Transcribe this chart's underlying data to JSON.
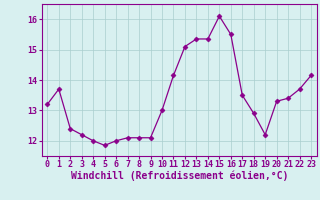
{
  "x": [
    0,
    1,
    2,
    3,
    4,
    5,
    6,
    7,
    8,
    9,
    10,
    11,
    12,
    13,
    14,
    15,
    16,
    17,
    18,
    19,
    20,
    21,
    22,
    23
  ],
  "y": [
    13.2,
    13.7,
    12.4,
    12.2,
    12.0,
    11.85,
    12.0,
    12.1,
    12.1,
    12.1,
    13.0,
    14.15,
    15.1,
    15.35,
    15.35,
    16.1,
    15.5,
    13.5,
    12.9,
    12.2,
    13.3,
    13.4,
    13.7,
    14.15
  ],
  "line_color": "#8B008B",
  "marker": "D",
  "markersize": 2.5,
  "linewidth": 0.9,
  "bg_color": "#d8f0f0",
  "grid_color": "#aacece",
  "xlabel": "Windchill (Refroidissement éolien,°C)",
  "xlabel_fontsize": 7,
  "tick_fontsize": 6,
  "ylim": [
    11.5,
    16.5
  ],
  "yticks": [
    12,
    13,
    14,
    15,
    16
  ],
  "xticks": [
    0,
    1,
    2,
    3,
    4,
    5,
    6,
    7,
    8,
    9,
    10,
    11,
    12,
    13,
    14,
    15,
    16,
    17,
    18,
    19,
    20,
    21,
    22,
    23
  ]
}
